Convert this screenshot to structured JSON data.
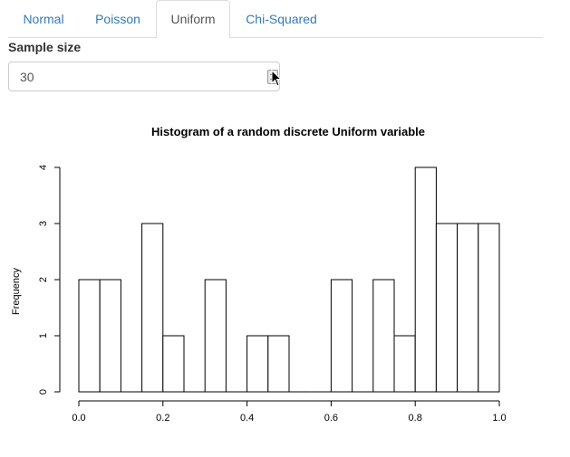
{
  "tabs": [
    {
      "label": "Normal",
      "active": false
    },
    {
      "label": "Poisson",
      "active": false
    },
    {
      "label": "Uniform",
      "active": true
    },
    {
      "label": "Chi-Squared",
      "active": false
    }
  ],
  "sample_size": {
    "label": "Sample size",
    "value": "30"
  },
  "colors": {
    "link": "#337ab7",
    "active_tab_text": "#555555",
    "border": "#dddddd",
    "bar_fill": "#ffffff",
    "bar_stroke": "#000000"
  },
  "icons": {
    "spinner": "number-spinner-icon",
    "cursor": "mouse-pointer-icon"
  },
  "chart_data": {
    "type": "bar",
    "title": "Histogram of a random discrete Uniform variable",
    "xlabel": "",
    "ylabel": "Frequency",
    "bins": [
      [
        0.0,
        0.05
      ],
      [
        0.05,
        0.1
      ],
      [
        0.1,
        0.15
      ],
      [
        0.15,
        0.2
      ],
      [
        0.2,
        0.25
      ],
      [
        0.25,
        0.3
      ],
      [
        0.3,
        0.35
      ],
      [
        0.35,
        0.4
      ],
      [
        0.4,
        0.45
      ],
      [
        0.45,
        0.5
      ],
      [
        0.5,
        0.55
      ],
      [
        0.55,
        0.6
      ],
      [
        0.6,
        0.65
      ],
      [
        0.65,
        0.7
      ],
      [
        0.7,
        0.75
      ],
      [
        0.75,
        0.8
      ],
      [
        0.8,
        0.85
      ],
      [
        0.85,
        0.9
      ],
      [
        0.9,
        0.95
      ],
      [
        0.95,
        1.0
      ]
    ],
    "values": [
      2,
      2,
      0,
      3,
      1,
      0,
      2,
      0,
      1,
      1,
      0,
      0,
      2,
      0,
      2,
      1,
      4,
      3,
      3,
      3
    ],
    "xlim": [
      0,
      1
    ],
    "ylim": [
      0,
      4
    ],
    "xticks": [
      "0.0",
      "0.2",
      "0.4",
      "0.6",
      "0.8",
      "1.0"
    ],
    "yticks": [
      "0",
      "1",
      "2",
      "3",
      "4"
    ],
    "grid": false
  }
}
